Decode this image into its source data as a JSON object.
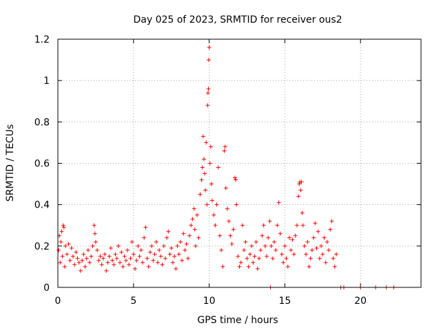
{
  "chart_data": {
    "type": "scatter",
    "title": "Day 025 of 2023, SRMTID for receiver ous2",
    "xlabel": "GPS time / hours",
    "ylabel": "SRMTID / TECUs",
    "xlim": [
      0,
      24
    ],
    "ylim": [
      0,
      1.2
    ],
    "xticks": [
      0,
      5,
      10,
      15,
      20
    ],
    "yticks": [
      0,
      0.2,
      0.4,
      0.6,
      0.8,
      1,
      1.2
    ],
    "ytick_labels": [
      "0",
      "0.2",
      "0.4",
      "0.6",
      "0.8",
      "1",
      "1.2"
    ],
    "grid": true,
    "marker": "plus",
    "color": "#ff0000",
    "series": [
      {
        "name": "SRMTID",
        "points": [
          [
            0.05,
            0.18
          ],
          [
            0.1,
            0.25
          ],
          [
            0.15,
            0.12
          ],
          [
            0.2,
            0.22
          ],
          [
            0.25,
            0.27
          ],
          [
            0.3,
            0.15
          ],
          [
            0.35,
            0.3
          ],
          [
            0.4,
            0.29
          ],
          [
            0.45,
            0.1
          ],
          [
            0.5,
            0.2
          ],
          [
            0.6,
            0.16
          ],
          [
            0.7,
            0.21
          ],
          [
            0.8,
            0.13
          ],
          [
            0.9,
            0.19
          ],
          [
            1.0,
            0.15
          ],
          [
            1.1,
            0.11
          ],
          [
            1.2,
            0.17
          ],
          [
            1.3,
            0.14
          ],
          [
            1.4,
            0.12
          ],
          [
            1.5,
            0.08
          ],
          [
            1.6,
            0.13
          ],
          [
            1.7,
            0.16
          ],
          [
            1.8,
            0.1
          ],
          [
            1.9,
            0.14
          ],
          [
            2.0,
            0.18
          ],
          [
            2.1,
            0.12
          ],
          [
            2.2,
            0.15
          ],
          [
            2.3,
            0.2
          ],
          [
            2.4,
            0.3
          ],
          [
            2.45,
            0.26
          ],
          [
            2.5,
            0.22
          ],
          [
            2.6,
            0.18
          ],
          [
            2.7,
            0.13
          ],
          [
            2.8,
            0.15
          ],
          [
            2.9,
            0.11
          ],
          [
            3.0,
            0.14
          ],
          [
            3.1,
            0.16
          ],
          [
            3.2,
            0.08
          ],
          [
            3.3,
            0.12
          ],
          [
            3.4,
            0.15
          ],
          [
            3.5,
            0.19
          ],
          [
            3.6,
            0.13
          ],
          [
            3.7,
            0.11
          ],
          [
            3.8,
            0.16
          ],
          [
            3.9,
            0.14
          ],
          [
            4.0,
            0.2
          ],
          [
            4.1,
            0.12
          ],
          [
            4.2,
            0.17
          ],
          [
            4.3,
            0.1
          ],
          [
            4.4,
            0.15
          ],
          [
            4.5,
            0.13
          ],
          [
            4.6,
            0.18
          ],
          [
            4.7,
            0.11
          ],
          [
            4.8,
            0.14
          ],
          [
            4.9,
            0.22
          ],
          [
            5.0,
            0.16
          ],
          [
            5.1,
            0.09
          ],
          [
            5.2,
            0.13
          ],
          [
            5.3,
            0.2
          ],
          [
            5.4,
            0.15
          ],
          [
            5.5,
            0.18
          ],
          [
            5.6,
            0.12
          ],
          [
            5.7,
            0.24
          ],
          [
            5.8,
            0.29
          ],
          [
            5.9,
            0.14
          ],
          [
            6.0,
            0.1
          ],
          [
            6.1,
            0.17
          ],
          [
            6.2,
            0.2
          ],
          [
            6.3,
            0.13
          ],
          [
            6.4,
            0.16
          ],
          [
            6.5,
            0.22
          ],
          [
            6.6,
            0.12
          ],
          [
            6.7,
            0.18
          ],
          [
            6.8,
            0.15
          ],
          [
            6.9,
            0.11
          ],
          [
            7.0,
            0.2
          ],
          [
            7.1,
            0.14
          ],
          [
            7.2,
            0.24
          ],
          [
            7.3,
            0.27
          ],
          [
            7.4,
            0.16
          ],
          [
            7.5,
            0.19
          ],
          [
            7.6,
            0.12
          ],
          [
            7.7,
            0.15
          ],
          [
            7.8,
            0.09
          ],
          [
            7.9,
            0.2
          ],
          [
            8.0,
            0.16
          ],
          [
            8.1,
            0.22
          ],
          [
            8.2,
            0.13
          ],
          [
            8.3,
            0.26
          ],
          [
            8.4,
            0.18
          ],
          [
            8.5,
            0.21
          ],
          [
            8.6,
            0.14
          ],
          [
            8.7,
            0.25
          ],
          [
            8.8,
            0.3
          ],
          [
            8.9,
            0.33
          ],
          [
            9.0,
            0.38
          ],
          [
            9.05,
            0.28
          ],
          [
            9.1,
            0.2
          ],
          [
            9.2,
            0.35
          ],
          [
            9.3,
            0.24
          ],
          [
            9.4,
            0.45
          ],
          [
            9.5,
            0.52
          ],
          [
            9.55,
            0.58
          ],
          [
            9.6,
            0.73
          ],
          [
            9.65,
            0.62
          ],
          [
            9.7,
            0.55
          ],
          [
            9.75,
            0.47
          ],
          [
            9.8,
            0.7
          ],
          [
            9.85,
            0.4
          ],
          [
            9.9,
            0.88
          ],
          [
            9.92,
            0.94
          ],
          [
            9.95,
            0.96
          ],
          [
            9.97,
            1.1
          ],
          [
            10.0,
            1.16
          ],
          [
            10.05,
            0.6
          ],
          [
            10.1,
            0.68
          ],
          [
            10.15,
            0.5
          ],
          [
            10.2,
            0.42
          ],
          [
            10.3,
            0.35
          ],
          [
            10.4,
            0.3
          ],
          [
            10.5,
            0.4
          ],
          [
            10.6,
            0.58
          ],
          [
            10.7,
            0.25
          ],
          [
            10.8,
            0.18
          ],
          [
            10.9,
            0.1
          ],
          [
            11.0,
            0.66
          ],
          [
            11.05,
            0.68
          ],
          [
            11.1,
            0.48
          ],
          [
            11.2,
            0.38
          ],
          [
            11.3,
            0.32
          ],
          [
            11.4,
            0.25
          ],
          [
            11.5,
            0.21
          ],
          [
            11.6,
            0.28
          ],
          [
            11.7,
            0.53
          ],
          [
            11.75,
            0.52
          ],
          [
            11.8,
            0.4
          ],
          [
            11.9,
            0.15
          ],
          [
            12.0,
            0.1
          ],
          [
            12.1,
            0.12
          ],
          [
            12.2,
            0.3
          ],
          [
            12.3,
            0.18
          ],
          [
            12.4,
            0.22
          ],
          [
            12.5,
            0.14
          ],
          [
            12.6,
            0.1
          ],
          [
            12.7,
            0.16
          ],
          [
            12.8,
            0.2
          ],
          [
            12.9,
            0.12
          ],
          [
            13.0,
            0.15
          ],
          [
            13.1,
            0.22
          ],
          [
            13.2,
            0.09
          ],
          [
            13.3,
            0.14
          ],
          [
            13.4,
            0.18
          ],
          [
            13.5,
            0.25
          ],
          [
            13.6,
            0.3
          ],
          [
            13.7,
            0.2
          ],
          [
            13.8,
            0.15
          ],
          [
            13.9,
            0.24
          ],
          [
            14.0,
            0.32
          ],
          [
            14.05,
            0.0
          ],
          [
            14.1,
            0.2
          ],
          [
            14.2,
            0.14
          ],
          [
            14.3,
            0.22
          ],
          [
            14.4,
            0.18
          ],
          [
            14.5,
            0.3
          ],
          [
            14.6,
            0.41
          ],
          [
            14.7,
            0.26
          ],
          [
            14.8,
            0.16
          ],
          [
            14.9,
            0.12
          ],
          [
            15.0,
            0.2
          ],
          [
            15.1,
            0.14
          ],
          [
            15.2,
            0.1
          ],
          [
            15.3,
            0.24
          ],
          [
            15.4,
            0.18
          ],
          [
            15.5,
            0.23
          ],
          [
            15.6,
            0.16
          ],
          [
            15.7,
            0.25
          ],
          [
            15.8,
            0.3
          ],
          [
            15.9,
            0.44
          ],
          [
            15.95,
            0.5
          ],
          [
            16.0,
            0.51
          ],
          [
            16.05,
            0.47
          ],
          [
            16.1,
            0.51
          ],
          [
            16.15,
            0.36
          ],
          [
            16.2,
            0.3
          ],
          [
            16.3,
            0.2
          ],
          [
            16.4,
            0.16
          ],
          [
            16.5,
            0.22
          ],
          [
            16.6,
            0.1
          ],
          [
            16.7,
            0.14
          ],
          [
            16.8,
            0.18
          ],
          [
            16.9,
            0.24
          ],
          [
            17.0,
            0.31
          ],
          [
            17.1,
            0.19
          ],
          [
            17.2,
            0.27
          ],
          [
            17.3,
            0.14
          ],
          [
            17.4,
            0.2
          ],
          [
            17.5,
            0.16
          ],
          [
            17.6,
            0.24
          ],
          [
            17.7,
            0.12
          ],
          [
            17.8,
            0.22
          ],
          [
            17.9,
            0.18
          ],
          [
            18.0,
            0.28
          ],
          [
            18.1,
            0.32
          ],
          [
            18.2,
            0.14
          ],
          [
            18.3,
            0.1
          ],
          [
            18.4,
            0.16
          ],
          [
            18.7,
            0.0
          ],
          [
            18.9,
            0.0
          ],
          [
            20.0,
            0.0
          ],
          [
            21.0,
            0.0
          ],
          [
            21.7,
            0.0
          ],
          [
            22.2,
            0.0
          ]
        ]
      }
    ]
  }
}
